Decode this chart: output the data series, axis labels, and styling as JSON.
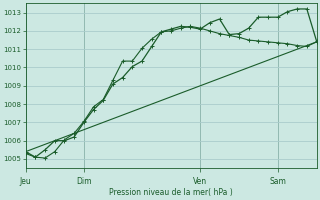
{
  "background_color": "#cce8e2",
  "plot_bg_color": "#cce8e2",
  "grid_color": "#aacccc",
  "line_color": "#1a5c2a",
  "xlabel": "Pression niveau de la mer( hPa )",
  "ylim": [
    1004.5,
    1013.5
  ],
  "yticks": [
    1005,
    1006,
    1007,
    1008,
    1009,
    1010,
    1011,
    1012,
    1013
  ],
  "day_labels": [
    "Jeu",
    "Dim",
    "Ven",
    "Sam"
  ],
  "day_positions": [
    0,
    3,
    9,
    13
  ],
  "vline_positions": [
    0,
    3,
    9,
    13
  ],
  "series1_x": [
    0,
    0.5,
    1,
    1.5,
    2,
    2.5,
    3,
    3.5,
    4,
    4.5,
    5,
    5.5,
    6,
    6.5,
    7,
    7.5,
    8,
    8.5,
    9,
    9.5,
    10,
    10.5,
    11,
    11.5,
    12,
    12.5,
    13,
    13.5,
    14,
    14.5,
    15
  ],
  "series1_y": [
    1005.3,
    1005.1,
    1005.05,
    1005.4,
    1006.05,
    1006.4,
    1007.05,
    1007.85,
    1008.25,
    1009.3,
    1010.35,
    1010.35,
    1011.05,
    1011.55,
    1011.95,
    1012.0,
    1012.15,
    1012.25,
    1012.15,
    1012.0,
    1011.85,
    1011.75,
    1011.65,
    1011.5,
    1011.45,
    1011.4,
    1011.35,
    1011.3,
    1011.2,
    1011.15,
    1011.4
  ],
  "series2_x": [
    0,
    0.5,
    1,
    1.5,
    2,
    2.5,
    3,
    3.5,
    4,
    4.5,
    5,
    5.5,
    6,
    6.5,
    7,
    7.5,
    8,
    8.5,
    9,
    9.5,
    10,
    10.5,
    11,
    11.5,
    12,
    12.5,
    13,
    13.5,
    14,
    14.5,
    15
  ],
  "series2_y": [
    1005.4,
    1005.1,
    1005.5,
    1006.0,
    1006.0,
    1006.2,
    1007.0,
    1007.7,
    1008.2,
    1009.1,
    1009.45,
    1010.05,
    1010.35,
    1011.15,
    1011.95,
    1012.1,
    1012.25,
    1012.2,
    1012.1,
    1012.45,
    1012.65,
    1011.8,
    1011.85,
    1012.15,
    1012.75,
    1012.75,
    1012.75,
    1013.05,
    1013.2,
    1013.2,
    1011.45
  ],
  "series3_x": [
    0,
    15
  ],
  "series3_y": [
    1005.4,
    1011.4
  ],
  "xmin": 0,
  "xmax": 15
}
